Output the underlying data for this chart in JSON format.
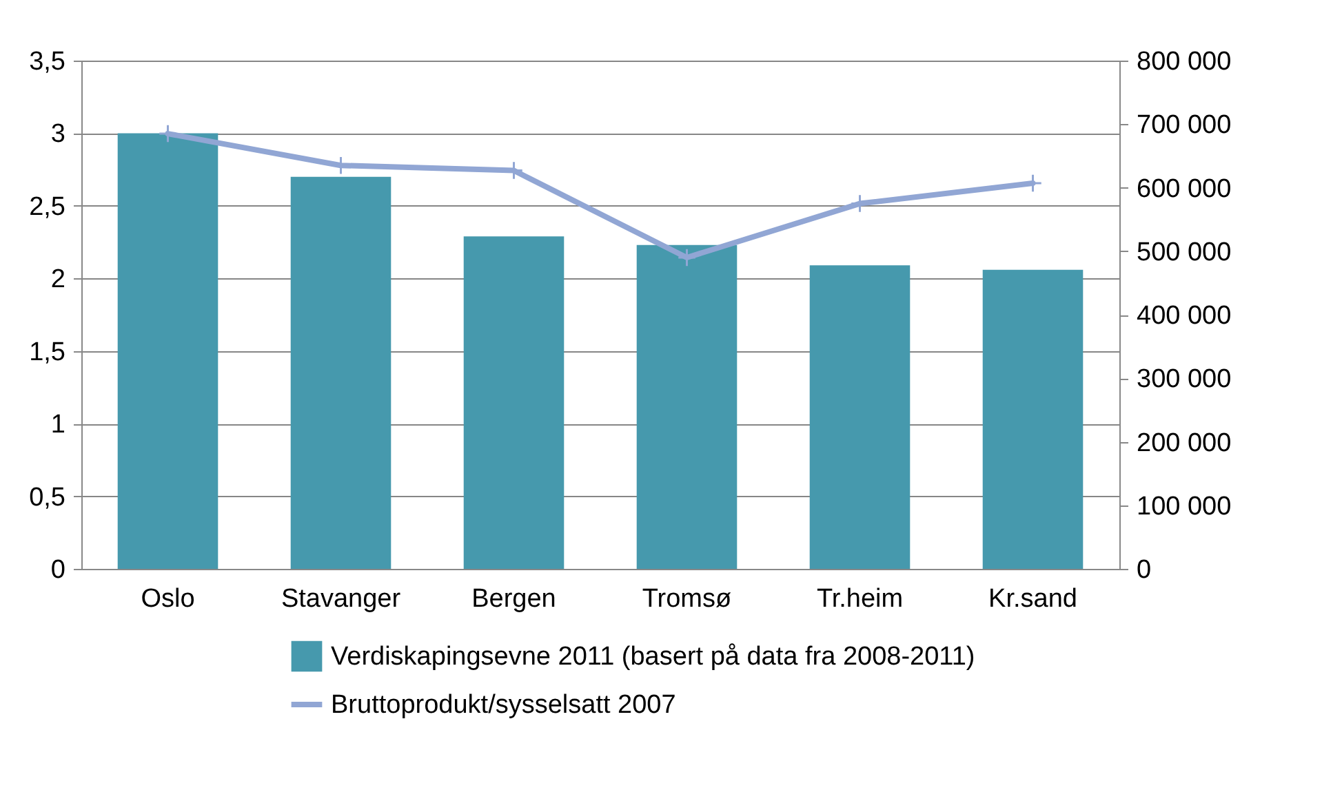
{
  "chart_data": {
    "type": "bar",
    "categories": [
      "Oslo",
      "Stavanger",
      "Bergen",
      "Tromsø",
      "Tr.heim",
      "Kr.sand"
    ],
    "series": [
      {
        "name": "Verdiskapingsevne 2011 (basert på data fra 2008-2011)",
        "color": "#4699ad",
        "values": [
          3.0,
          2.7,
          2.29,
          2.23,
          2.09,
          2.06
        ]
      },
      {
        "name": "Bruttoprodukt/sysselsatt 2007",
        "type": "line",
        "axis": "y2",
        "color": "#91a6d4",
        "marker": "cross",
        "values": [
          685000,
          635000,
          627000,
          490000,
          575000,
          607000
        ]
      }
    ],
    "ylim": [
      0,
      3.5
    ],
    "yticks": [
      0,
      {
        "value": 0.5,
        "label": "0,5"
      },
      1,
      {
        "value": 1.5,
        "label": "1,5"
      },
      2,
      {
        "value": 2.5,
        "label": "2,5"
      },
      3,
      {
        "value": 3.5,
        "label": "3,5"
      }
    ],
    "y2lim": [
      0,
      800000
    ],
    "y2ticks": [
      0,
      {
        "value": 100000,
        "label": "100 000"
      },
      {
        "value": 200000,
        "label": "200 000"
      },
      {
        "value": 300000,
        "label": "300 000"
      },
      {
        "value": 400000,
        "label": "400 000"
      },
      {
        "value": 500000,
        "label": "500 000"
      },
      {
        "value": 600000,
        "label": "600 000"
      },
      {
        "value": 700000,
        "label": "700 000"
      },
      {
        "value": 800000,
        "label": "800 000"
      }
    ],
    "grid": "y",
    "legend": "bottom"
  }
}
